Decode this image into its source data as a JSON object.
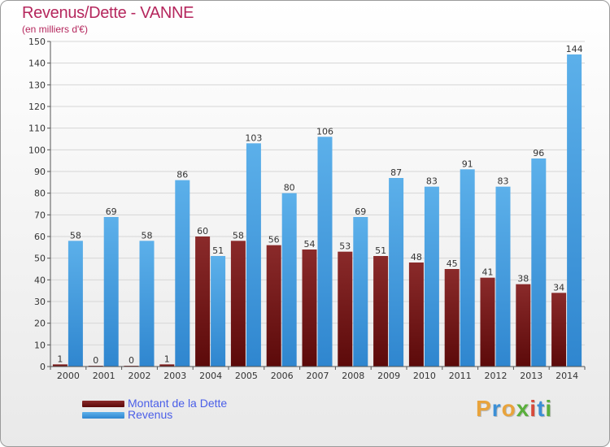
{
  "header": {
    "title": "Revenus/Dette - VANNE",
    "subtitle": "(en milliers d'€)"
  },
  "legend": {
    "debt_label": "Montant de la Dette",
    "revenue_label": "Revenus"
  },
  "logo": {
    "text": "Proxiti",
    "colors": [
      "#e8a33c",
      "#3b8fd6",
      "#e8a33c",
      "#5aaf3c",
      "#d64a3b",
      "#3b8fd6",
      "#5aaf3c"
    ]
  },
  "colors": {
    "debt_top": "#8a2a2a",
    "debt_bottom": "#5c0a0a",
    "revenue_top": "#5cb0ea",
    "revenue_bottom": "#2f86cf",
    "title": "#b5275d",
    "legend_text": "#4a5ee8"
  },
  "chart_data": {
    "type": "bar",
    "title": "Revenus/Dette - VANNE",
    "subtitle": "(en milliers d'€)",
    "xlabel": "",
    "ylabel": "",
    "ylim": [
      0,
      150
    ],
    "ytick_step": 10,
    "grid": true,
    "legend_position": "bottom-left",
    "categories": [
      "2000",
      "2001",
      "2002",
      "2003",
      "2004",
      "2005",
      "2006",
      "2007",
      "2008",
      "2009",
      "2010",
      "2011",
      "2012",
      "2013",
      "2014"
    ],
    "series": [
      {
        "name": "Montant de la Dette",
        "values": [
          1,
          0,
          0,
          1,
          60,
          58,
          56,
          54,
          53,
          51,
          48,
          45,
          41,
          38,
          34
        ]
      },
      {
        "name": "Revenus",
        "values": [
          58,
          69,
          58,
          86,
          51,
          103,
          80,
          106,
          69,
          87,
          83,
          91,
          83,
          96,
          144
        ]
      }
    ]
  }
}
